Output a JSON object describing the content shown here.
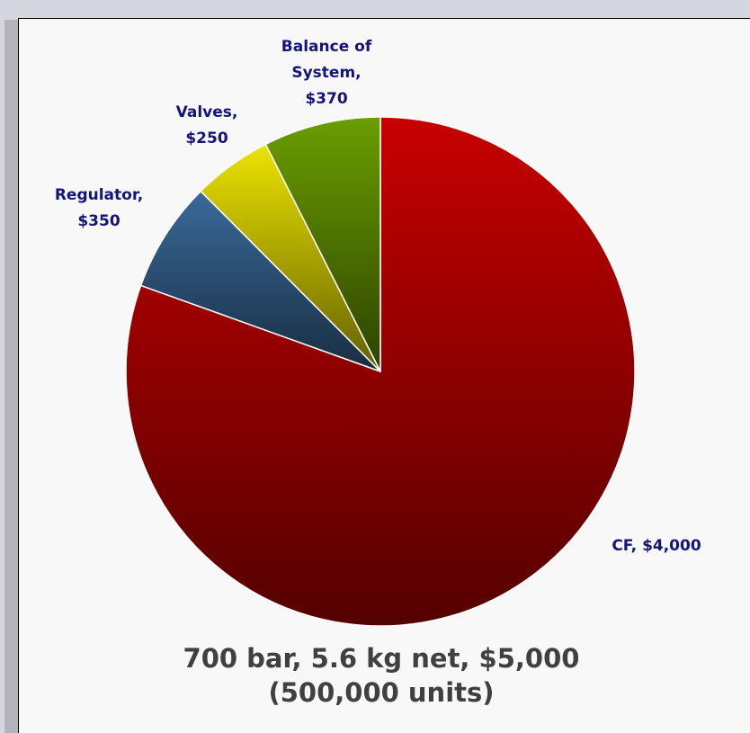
{
  "chart_data": {
    "type": "pie",
    "title": [
      "700 bar, 5.6 kg net, $5,000",
      "(500,000 units)"
    ],
    "values": [
      4000,
      350,
      250,
      370
    ],
    "value_labels": [
      [
        "CF, $4,000"
      ],
      [
        "Regulator,",
        "$350"
      ],
      [
        "Valves,",
        "$250"
      ],
      [
        "Balance of",
        "System,",
        "$370"
      ]
    ],
    "colors": [
      "#c80000",
      "#3a6a9a",
      "#ece400",
      "#6a9e00"
    ],
    "start_angle": 0,
    "direction": "clockwise"
  }
}
